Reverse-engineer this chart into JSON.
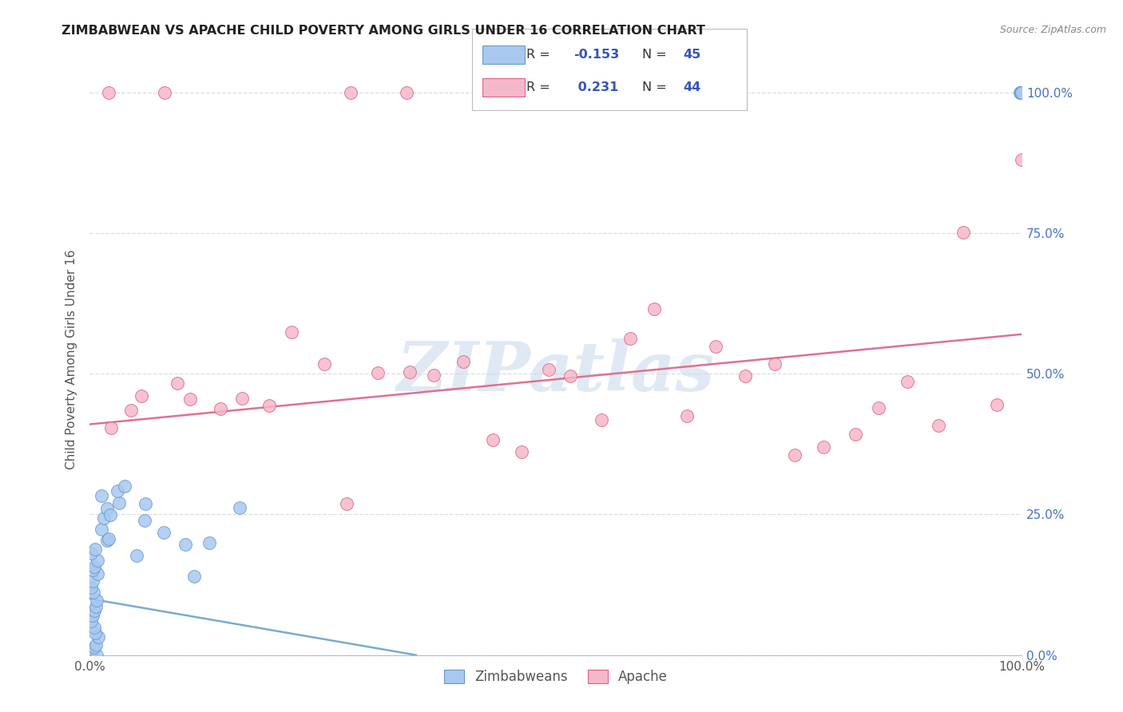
{
  "title": "ZIMBABWEAN VS APACHE CHILD POVERTY AMONG GIRLS UNDER 16 CORRELATION CHART",
  "source": "Source: ZipAtlas.com",
  "ylabel": "Child Poverty Among Girls Under 16",
  "ytick_values": [
    0,
    25,
    50,
    75,
    100
  ],
  "xlim": [
    0,
    100
  ],
  "ylim": [
    0,
    105
  ],
  "watermark_text": "ZIPatlas",
  "legend_label1": "Zimbabweans",
  "legend_label2": "Apache",
  "blue_color": "#a8c8f0",
  "blue_edge_color": "#6699cc",
  "pink_color": "#f5b8cb",
  "pink_edge_color": "#e06080",
  "blue_line_color": "#7aaad0",
  "pink_line_color": "#e07090",
  "grid_color": "#dddddd",
  "right_tick_color": "#4472c4",
  "title_color": "#222222",
  "source_color": "#888888",
  "ylabel_color": "#555555",
  "background_color": "#ffffff",
  "zimbabwean_x": [
    0.5,
    0.5,
    0.5,
    0.5,
    0.5,
    0.5,
    0.5,
    0.5,
    0.5,
    0.5,
    0.5,
    0.5,
    0.5,
    0.5,
    0.5,
    0.5,
    0.5,
    0.5,
    0.5,
    0.5,
    0.5,
    1.5,
    1.5,
    1.5,
    1.5,
    1.5,
    2,
    2,
    3,
    3,
    4,
    5,
    6,
    6,
    8,
    10,
    11,
    13,
    16,
    100,
    100,
    100,
    100,
    100,
    100
  ],
  "zimbabwean_y": [
    0,
    0,
    1,
    2,
    3,
    4,
    5,
    6,
    7,
    8,
    9,
    10,
    11,
    12,
    13,
    14,
    15,
    16,
    17,
    18,
    19,
    20,
    22,
    24,
    26,
    28,
    21,
    25,
    27,
    29,
    30,
    18,
    24,
    27,
    22,
    20,
    14,
    20,
    26,
    100,
    100,
    100,
    100,
    100,
    100
  ],
  "apache_x": [
    2,
    4,
    6,
    9,
    11,
    14,
    16,
    19,
    22,
    25,
    28,
    31,
    34,
    37,
    40,
    43,
    46,
    49,
    52,
    55,
    58,
    61,
    64,
    67,
    70,
    73,
    76,
    79,
    82,
    85,
    88,
    91,
    94,
    97
  ],
  "apache_y": [
    40,
    44,
    46,
    48,
    45,
    44,
    46,
    44,
    57,
    52,
    27,
    50,
    50,
    50,
    52,
    38,
    36,
    51,
    50,
    42,
    56,
    62,
    43,
    55,
    50,
    52,
    36,
    37,
    39,
    44,
    49,
    41,
    75,
    44
  ],
  "pink_top_x": [
    2,
    8,
    28,
    34,
    100
  ],
  "pink_top_y": [
    100,
    100,
    100,
    100,
    88
  ],
  "blue_trend_x": [
    0,
    35
  ],
  "blue_trend_y": [
    10,
    0
  ],
  "pink_trend_x": [
    0,
    100
  ],
  "pink_trend_y": [
    41,
    57
  ]
}
